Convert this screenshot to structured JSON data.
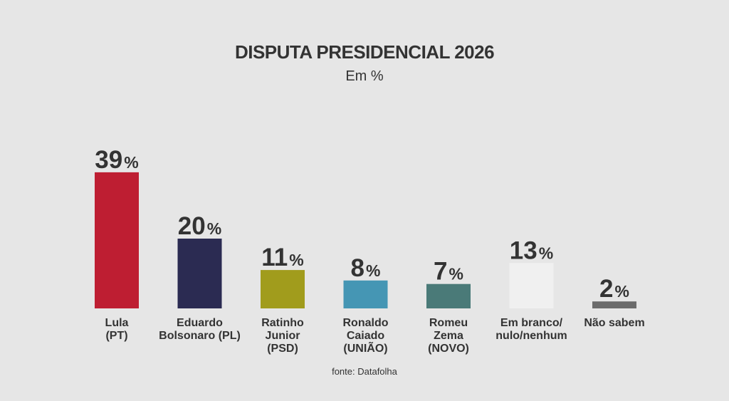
{
  "header": {
    "title": "DISPUTA PRESIDENCIAL 2026",
    "subtitle": "Em %"
  },
  "footer": {
    "source": "fonte: Datafolha"
  },
  "chart_data": {
    "type": "bar",
    "title": "DISPUTA PRESIDENCIAL 2026",
    "subtitle": "Em %",
    "unit": "%",
    "categories": [
      [
        "Lula",
        "(PT)"
      ],
      [
        "Eduardo",
        "Bolsonaro (PL)"
      ],
      [
        "Ratinho",
        "Junior",
        "(PSD)"
      ],
      [
        "Ronaldo",
        "Caiado",
        "(UNIÃO)"
      ],
      [
        "Romeu",
        "Zema",
        "(NOVO)"
      ],
      [
        "Em branco/",
        "nulo/nenhum"
      ],
      [
        "Não sabem"
      ]
    ],
    "values": [
      39,
      20,
      11,
      8,
      7,
      13,
      2
    ],
    "value_labels": [
      "39",
      "20",
      "11",
      "8",
      "7",
      "13",
      "2"
    ],
    "colors": [
      "#be1e32",
      "#2b2b52",
      "#a19c1c",
      "#4596b4",
      "#4a7a78",
      "#f0f0f0",
      "#6b6b6b"
    ],
    "grid": false,
    "legend": "none",
    "source": "fonte: Datafolha"
  }
}
